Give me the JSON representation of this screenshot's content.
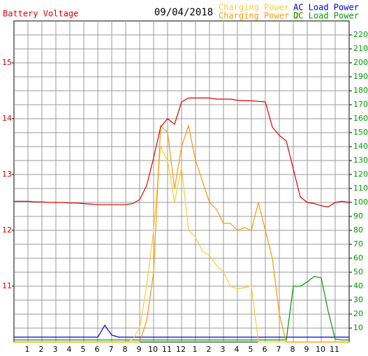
{
  "chart_data": {
    "type": "line",
    "title": "09/04/2018",
    "ylabel": "Battery Voltage",
    "x": [
      0,
      0.5,
      1,
      1.5,
      2,
      2.5,
      3,
      3.5,
      4,
      4.5,
      5,
      5.5,
      6,
      6.5,
      7,
      7.5,
      8,
      8.5,
      9,
      9.5,
      10,
      10.5,
      11,
      11.5,
      12,
      12.5,
      13,
      13.5,
      14,
      14.5,
      15,
      15.5,
      16,
      16.5,
      17,
      17.5,
      18,
      18.5,
      19,
      19.5,
      20,
      20.5,
      21,
      21.5,
      22,
      22.5,
      23,
      23.5,
      24
    ],
    "xlim": [
      0,
      24
    ],
    "xticks": [
      1,
      2,
      3,
      4,
      5,
      6,
      7,
      8,
      9,
      10,
      11,
      12,
      {
        "value": 13,
        "label": "1"
      },
      {
        "value": 14,
        "label": "2"
      },
      {
        "value": 15,
        "label": "3"
      },
      {
        "value": 16,
        "label": "4"
      },
      {
        "value": 17,
        "label": "5"
      },
      {
        "value": 18,
        "label": "6"
      },
      {
        "value": 19,
        "label": "7"
      },
      {
        "value": 20,
        "label": "8"
      },
      {
        "value": 21,
        "label": "9"
      },
      {
        "value": 22,
        "label": "10"
      },
      {
        "value": 23,
        "label": "11"
      }
    ],
    "ylim": [
      10,
      15.75
    ],
    "yticks": [
      11,
      12,
      13,
      14,
      15
    ],
    "y2lim": [
      0,
      230
    ],
    "y2ticks": [
      10,
      20,
      30,
      40,
      50,
      60,
      70,
      80,
      90,
      100,
      110,
      120,
      130,
      140,
      150,
      160,
      170,
      180,
      190,
      200,
      210,
      220
    ],
    "grid": true,
    "series": [
      {
        "name": "Battery Voltage",
        "color": "#dd0000",
        "values": [
          12.52,
          12.52,
          12.52,
          12.51,
          12.51,
          12.5,
          12.5,
          12.5,
          12.49,
          12.49,
          12.48,
          12.47,
          12.46,
          12.46,
          12.46,
          12.46,
          12.46,
          12.48,
          12.55,
          12.8,
          13.3,
          13.85,
          14.0,
          13.9,
          14.3,
          14.37,
          14.37,
          14.37,
          14.37,
          14.35,
          14.35,
          14.35,
          14.33,
          14.32,
          14.32,
          14.31,
          14.3,
          13.85,
          13.7,
          13.6,
          13.1,
          12.6,
          12.5,
          12.48,
          12.44,
          12.42,
          12.5,
          12.52,
          12.5
        ]
      },
      {
        "name": "Charging Power 1",
        "color": "#ffcc33",
        "axis": "y2",
        "values": [
          0,
          0,
          0,
          0,
          0,
          0,
          0,
          0,
          0,
          0,
          0,
          0,
          0,
          0,
          0,
          0,
          0,
          2,
          10,
          40,
          80,
          140,
          130,
          100,
          125,
          80,
          75,
          65,
          62,
          55,
          50,
          40,
          38,
          39,
          40,
          0,
          0,
          0,
          0,
          0,
          0,
          0,
          0,
          0,
          0,
          0,
          0,
          0,
          0
        ]
      },
      {
        "name": "Charging Power 2",
        "color": "#ff9900",
        "axis": "y2",
        "values": [
          0,
          0,
          0,
          0,
          0,
          0,
          0,
          0,
          0,
          0,
          0,
          0,
          0,
          0,
          0,
          0,
          0,
          0,
          0,
          15,
          50,
          155,
          150,
          110,
          140,
          155,
          130,
          115,
          100,
          95,
          85,
          85,
          80,
          82,
          80,
          100,
          80,
          60,
          20,
          0,
          0,
          0,
          0,
          0,
          0,
          0,
          0,
          0,
          0
        ]
      },
      {
        "name": "AC Load Power",
        "color": "#0000cc",
        "axis": "y2",
        "values": [
          3.5,
          3.5,
          3.5,
          3.5,
          3.5,
          3.5,
          3.5,
          3.5,
          3.5,
          3.5,
          3.5,
          3.5,
          3.5,
          12,
          5,
          3.5,
          3.5,
          3.5,
          3.5,
          3.5,
          3.5,
          3.5,
          3.5,
          3.5,
          3.5,
          3.5,
          3.5,
          3.5,
          3.5,
          3.5,
          3.5,
          3.5,
          3.5,
          3.5,
          3.5,
          3.5,
          3.5,
          3.5,
          3.5,
          3.5,
          3.5,
          3.5,
          3.5,
          3.5,
          3.5,
          3.5,
          3.5,
          3.5,
          3.5
        ]
      },
      {
        "name": "DC Load Power",
        "color": "#009900",
        "axis": "y2",
        "values": [
          1.5,
          1.5,
          1.5,
          1.5,
          1.5,
          1.5,
          1.5,
          1.5,
          1.5,
          1.5,
          1.5,
          1.5,
          1.5,
          1.5,
          1.5,
          1.5,
          1.5,
          1.5,
          1.5,
          1.5,
          1.5,
          1.5,
          1.5,
          1.5,
          1.5,
          1.5,
          1.5,
          1.5,
          1.5,
          1.5,
          1.5,
          1.5,
          1.5,
          1.5,
          1.5,
          1.5,
          1.5,
          1.5,
          1.5,
          1.5,
          40,
          40,
          43,
          47,
          46,
          22,
          2,
          1.5,
          1.5
        ]
      }
    ]
  }
}
